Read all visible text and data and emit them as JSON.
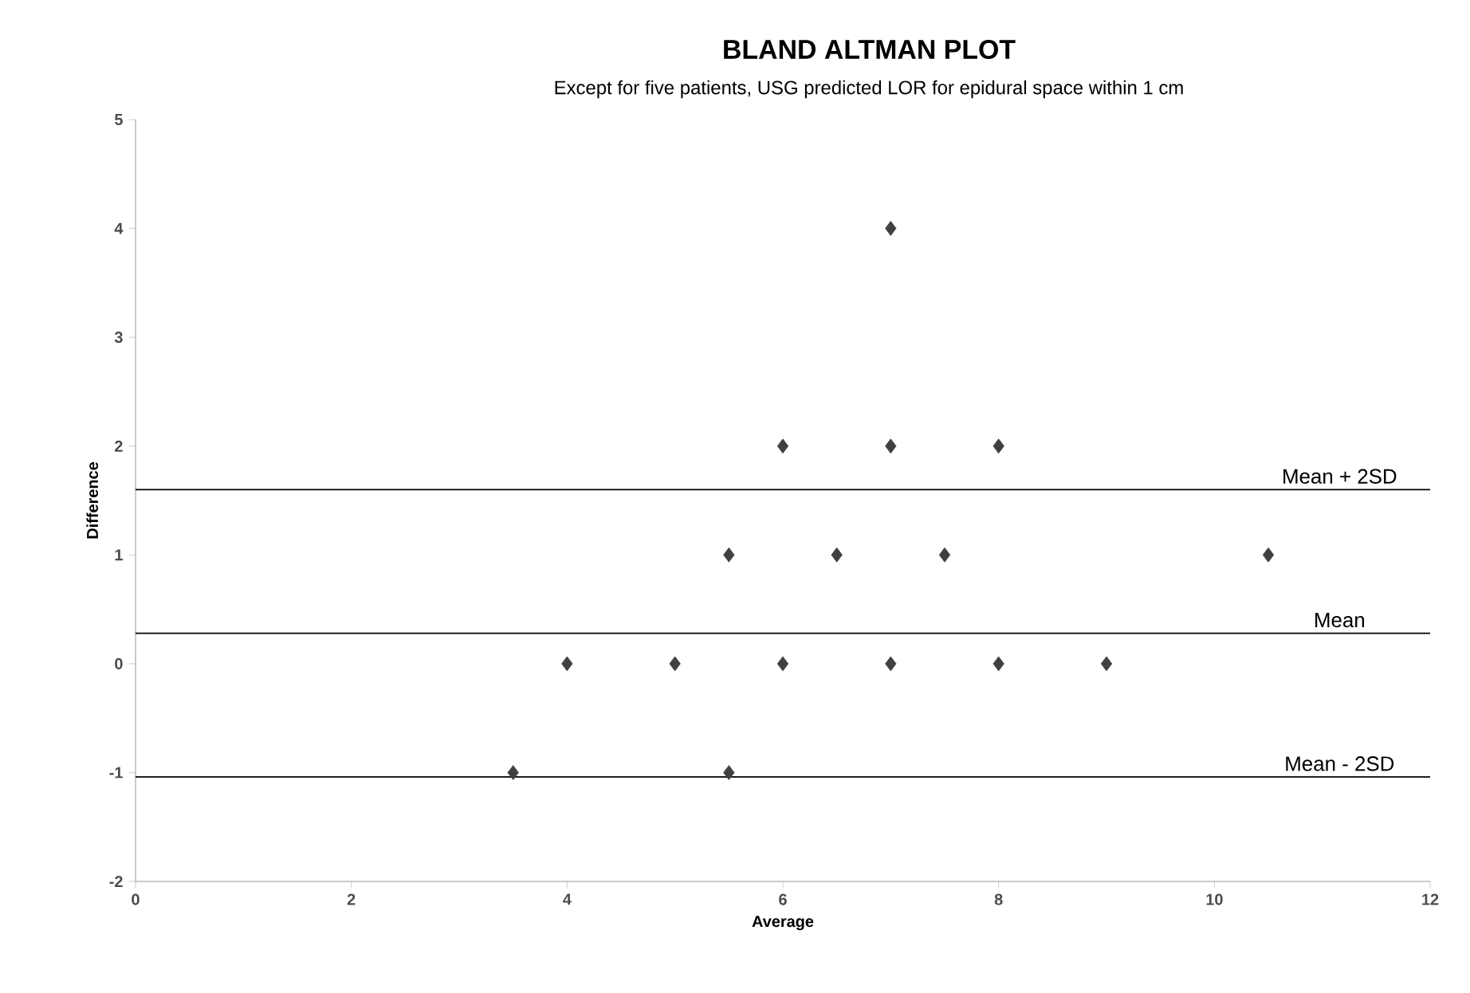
{
  "chart_data": {
    "type": "scatter",
    "title": "BLAND ALTMAN PLOT",
    "subtitle": "Except for five patients, USG predicted LOR for epidural space within 1 cm",
    "xlabel": "Average",
    "ylabel": "Difference",
    "series": [
      {
        "x": [
          7,
          6,
          7,
          8,
          5.5,
          6.5,
          7.5,
          10.5,
          4,
          5,
          6,
          7,
          8,
          9,
          3.5,
          5.5
        ],
        "values": [
          4,
          2,
          2,
          2,
          1,
          1,
          1,
          1,
          0,
          0,
          0,
          0,
          0,
          0,
          -1,
          -1
        ],
        "color": "#404040"
      }
    ],
    "marker": "diamond",
    "xlim": [
      0,
      12
    ],
    "ylim": [
      -2,
      5
    ],
    "xticks": [
      0,
      2,
      4,
      6,
      8,
      10,
      12
    ],
    "yticks": [
      -2,
      -1,
      0,
      1,
      2,
      3,
      4,
      5
    ],
    "ref_lines": [
      {
        "axis": "y",
        "value": 1.6,
        "label": "Mean + 2SD",
        "color": "#000000"
      },
      {
        "axis": "y",
        "value": 0.28,
        "label": "Mean",
        "color": "#000000"
      },
      {
        "axis": "y",
        "value": -1.04,
        "label": "Mean - 2SD",
        "color": "#000000"
      }
    ]
  }
}
